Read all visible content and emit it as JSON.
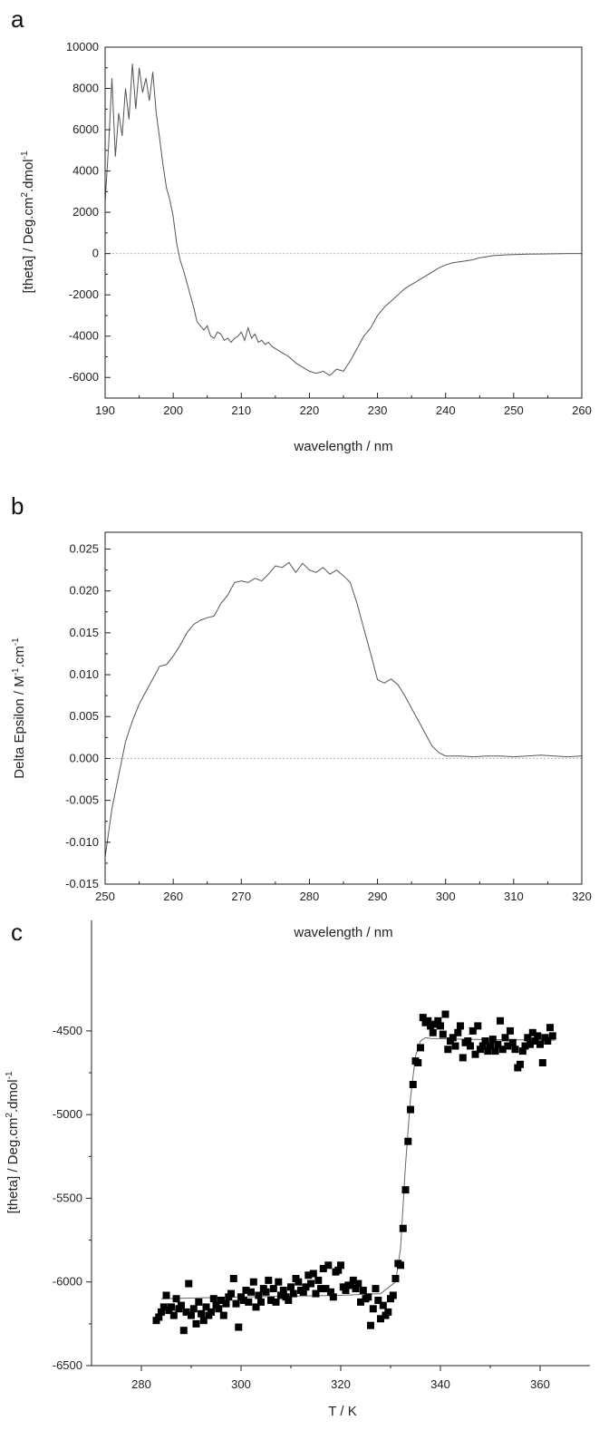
{
  "chart_data": [
    {
      "id": "a",
      "panel_label": "a",
      "type": "line",
      "title": "",
      "xlabel": "wavelength / nm",
      "ylabel": "[theta] / Deg.cm",
      "ylabel_sup1": "2",
      "ylabel_mid": ".dmol",
      "ylabel_sup2": "-1",
      "xlim": [
        190,
        260
      ],
      "ylim": [
        -7000,
        10000
      ],
      "xticks": [
        190,
        200,
        210,
        220,
        230,
        240,
        250,
        260
      ],
      "yticks": [
        -6000,
        -4000,
        -2000,
        0,
        2000,
        4000,
        6000,
        8000,
        10000
      ],
      "reference_line_y": 0,
      "x": [
        190,
        190.5,
        191,
        191.5,
        192,
        192.5,
        193,
        193.5,
        194,
        194.5,
        195,
        195.5,
        196,
        196.5,
        197,
        197.5,
        198,
        198.5,
        199,
        199.5,
        200,
        200.5,
        201,
        201.5,
        202,
        202.5,
        203,
        203.5,
        204,
        204.5,
        205,
        205.5,
        206,
        206.5,
        207,
        207.5,
        208,
        208.5,
        209,
        209.5,
        210,
        210.5,
        211,
        211.5,
        212,
        212.5,
        213,
        213.5,
        214,
        214.5,
        215,
        216,
        217,
        218,
        219,
        220,
        221,
        222,
        223,
        224,
        225,
        226,
        227,
        228,
        229,
        230,
        231,
        232,
        233,
        234,
        235,
        236,
        237,
        238,
        239,
        240,
        241,
        242,
        243,
        244,
        245,
        246,
        247,
        248,
        249,
        250,
        252,
        254,
        256,
        258,
        260
      ],
      "values": [
        2500,
        5200,
        8500,
        4700,
        6800,
        5700,
        8000,
        6500,
        9200,
        7000,
        9000,
        7800,
        8500,
        7400,
        8800,
        6800,
        5600,
        4300,
        3200,
        2600,
        1800,
        500,
        -300,
        -800,
        -1400,
        -2000,
        -2600,
        -3300,
        -3500,
        -3700,
        -3500,
        -4000,
        -4100,
        -3800,
        -3900,
        -4200,
        -4100,
        -4300,
        -4100,
        -4000,
        -3800,
        -4200,
        -3600,
        -4100,
        -3900,
        -4300,
        -4200,
        -4400,
        -4300,
        -4500,
        -4600,
        -4800,
        -5000,
        -5300,
        -5500,
        -5700,
        -5800,
        -5700,
        -5900,
        -5600,
        -5700,
        -5200,
        -4600,
        -4000,
        -3600,
        -3000,
        -2600,
        -2300,
        -2000,
        -1700,
        -1500,
        -1300,
        -1100,
        -900,
        -700,
        -550,
        -450,
        -400,
        -350,
        -300,
        -200,
        -150,
        -100,
        -80,
        -60,
        -50,
        -30,
        -20,
        -10,
        0,
        0
      ]
    },
    {
      "id": "b",
      "panel_label": "b",
      "type": "line",
      "title": "",
      "xlabel": "wavelength / nm",
      "ylabel": "Delta Epsilon / M",
      "ylabel_sup1": "-1",
      "ylabel_mid": ".cm",
      "ylabel_sup2": "-1",
      "xlim": [
        250,
        320
      ],
      "ylim": [
        -0.015,
        0.027
      ],
      "xticks": [
        250,
        260,
        270,
        280,
        290,
        300,
        310,
        320
      ],
      "yticks": [
        -0.015,
        -0.01,
        -0.005,
        0,
        0.005,
        0.01,
        0.015,
        0.02,
        0.025
      ],
      "ytick_labels": [
        "-0.015",
        "-0.010",
        "-0.005",
        "0.000",
        "0.005",
        "0.010",
        "0.015",
        "0.020",
        "0.025"
      ],
      "reference_line_y": 0,
      "x": [
        250,
        251,
        252,
        253,
        254,
        255,
        256,
        257,
        258,
        259,
        260,
        261,
        262,
        263,
        264,
        265,
        266,
        267,
        268,
        269,
        270,
        271,
        272,
        273,
        274,
        275,
        276,
        277,
        278,
        279,
        280,
        281,
        282,
        283,
        284,
        285,
        286,
        287,
        288,
        289,
        290,
        291,
        292,
        293,
        294,
        295,
        296,
        297,
        298,
        299,
        300,
        302,
        304,
        306,
        308,
        310,
        312,
        314,
        316,
        318,
        320
      ],
      "values": [
        -0.0118,
        -0.006,
        -0.002,
        0.002,
        0.0045,
        0.0065,
        0.008,
        0.0095,
        0.011,
        0.0112,
        0.0122,
        0.0135,
        0.015,
        0.016,
        0.0165,
        0.0168,
        0.017,
        0.0185,
        0.0195,
        0.021,
        0.0212,
        0.021,
        0.0215,
        0.0212,
        0.022,
        0.023,
        0.0228,
        0.0234,
        0.0222,
        0.0233,
        0.0225,
        0.0222,
        0.0228,
        0.022,
        0.0225,
        0.0218,
        0.021,
        0.0185,
        0.0155,
        0.0125,
        0.0094,
        0.009,
        0.0095,
        0.0088,
        0.0075,
        0.006,
        0.0045,
        0.003,
        0.0015,
        0.0007,
        0.0003,
        0.0003,
        0.0002,
        0.0003,
        0.0003,
        0.0002,
        0.0003,
        0.0004,
        0.0003,
        0.0002,
        0.0003
      ]
    },
    {
      "id": "c",
      "panel_label": "c",
      "type": "scatter",
      "title": "",
      "xlabel": "T / K",
      "ylabel": "[theta] / Deg.cm",
      "ylabel_sup1": "2",
      "ylabel_mid": ".dmol",
      "ylabel_sup2": "-1",
      "xlim": [
        270,
        370
      ],
      "ylim": [
        -6500,
        -4300
      ],
      "xticks": [
        280,
        300,
        320,
        340,
        360
      ],
      "yticks": [
        -6500,
        -6000,
        -5500,
        -5000,
        -4500
      ],
      "fit_line": {
        "x": [
          284,
          300,
          320,
          328,
          331,
          332,
          333,
          334,
          335,
          336,
          337,
          338,
          345,
          363
        ],
        "values": [
          -6100,
          -6090,
          -6080,
          -6070,
          -6000,
          -5800,
          -5300,
          -4900,
          -4650,
          -4560,
          -4540,
          -4545,
          -4550,
          -4555
        ]
      },
      "points": [
        [
          283,
          -6230
        ],
        [
          283.5,
          -6210
        ],
        [
          284,
          -6180
        ],
        [
          284.5,
          -6150
        ],
        [
          285,
          -6080
        ],
        [
          285.5,
          -6170
        ],
        [
          286,
          -6150
        ],
        [
          286.5,
          -6200
        ],
        [
          287,
          -6100
        ],
        [
          287.5,
          -6160
        ],
        [
          288,
          -6140
        ],
        [
          288.5,
          -6290
        ],
        [
          289,
          -6180
        ],
        [
          289.5,
          -6010
        ],
        [
          290,
          -6200
        ],
        [
          290.5,
          -6160
        ],
        [
          291,
          -6250
        ],
        [
          291.5,
          -6120
        ],
        [
          292,
          -6190
        ],
        [
          292.5,
          -6230
        ],
        [
          293,
          -6150
        ],
        [
          293.5,
          -6200
        ],
        [
          294,
          -6180
        ],
        [
          294.5,
          -6100
        ],
        [
          295,
          -6140
        ],
        [
          295.5,
          -6160
        ],
        [
          296,
          -6110
        ],
        [
          296.5,
          -6200
        ],
        [
          297,
          -6130
        ],
        [
          297.5,
          -6090
        ],
        [
          298,
          -6070
        ],
        [
          298.5,
          -5980
        ],
        [
          299,
          -6130
        ],
        [
          299.5,
          -6270
        ],
        [
          300,
          -6090
        ],
        [
          300.5,
          -6110
        ],
        [
          301,
          -6050
        ],
        [
          301.5,
          -6120
        ],
        [
          302,
          -6060
        ],
        [
          302.5,
          -6000
        ],
        [
          303,
          -6150
        ],
        [
          303.5,
          -6080
        ],
        [
          304,
          -6120
        ],
        [
          304.5,
          -6040
        ],
        [
          305,
          -6060
        ],
        [
          305.5,
          -5990
        ],
        [
          306,
          -6110
        ],
        [
          306.5,
          -6040
        ],
        [
          307,
          -6120
        ],
        [
          307.5,
          -6000
        ],
        [
          308,
          -6080
        ],
        [
          308.5,
          -6050
        ],
        [
          309,
          -6090
        ],
        [
          309.5,
          -6110
        ],
        [
          310,
          -6030
        ],
        [
          310.5,
          -6070
        ],
        [
          311,
          -5980
        ],
        [
          311.5,
          -6000
        ],
        [
          312,
          -6050
        ],
        [
          312.5,
          -6060
        ],
        [
          313,
          -6030
        ],
        [
          313.5,
          -5960
        ],
        [
          314,
          -6010
        ],
        [
          314.5,
          -5950
        ],
        [
          315,
          -6070
        ],
        [
          315.5,
          -5990
        ],
        [
          316,
          -6040
        ],
        [
          316.5,
          -5920
        ],
        [
          317,
          -6040
        ],
        [
          317.5,
          -5900
        ],
        [
          318,
          -6060
        ],
        [
          318.5,
          -6090
        ],
        [
          319,
          -5940
        ],
        [
          319.5,
          -5930
        ],
        [
          320,
          -5900
        ],
        [
          320.5,
          -6030
        ],
        [
          321,
          -6050
        ],
        [
          321.5,
          -6020
        ],
        [
          322,
          -6020
        ],
        [
          322.5,
          -5990
        ],
        [
          323,
          -6040
        ],
        [
          323.5,
          -6010
        ],
        [
          324,
          -6120
        ],
        [
          324.5,
          -6050
        ],
        [
          325,
          -6100
        ],
        [
          325.5,
          -6090
        ],
        [
          326,
          -6260
        ],
        [
          326.5,
          -6160
        ],
        [
          327,
          -6040
        ],
        [
          327.5,
          -6110
        ],
        [
          328,
          -6220
        ],
        [
          328.5,
          -6140
        ],
        [
          329,
          -6200
        ],
        [
          329.5,
          -6180
        ],
        [
          330,
          -6100
        ],
        [
          330.5,
          -6080
        ],
        [
          331,
          -5980
        ],
        [
          331.5,
          -5890
        ],
        [
          332,
          -5900
        ],
        [
          332.5,
          -5680
        ],
        [
          333,
          -5450
        ],
        [
          333.5,
          -5160
        ],
        [
          334,
          -4970
        ],
        [
          334.5,
          -4820
        ],
        [
          335,
          -4680
        ],
        [
          335.5,
          -4690
        ],
        [
          336,
          -4600
        ],
        [
          336.5,
          -4420
        ],
        [
          337,
          -4450
        ],
        [
          337.5,
          -4440
        ],
        [
          338,
          -4470
        ],
        [
          338.5,
          -4510
        ],
        [
          339,
          -4460
        ],
        [
          339.5,
          -4440
        ],
        [
          340,
          -4470
        ],
        [
          340.5,
          -4520
        ],
        [
          341,
          -4400
        ],
        [
          341.5,
          -4610
        ],
        [
          342,
          -4560
        ],
        [
          342.5,
          -4540
        ],
        [
          343,
          -4590
        ],
        [
          343.5,
          -4510
        ],
        [
          344,
          -4470
        ],
        [
          344.5,
          -4660
        ],
        [
          345,
          -4570
        ],
        [
          345.5,
          -4560
        ],
        [
          346,
          -4590
        ],
        [
          346.5,
          -4500
        ],
        [
          347,
          -4640
        ],
        [
          347.5,
          -4470
        ],
        [
          348,
          -4610
        ],
        [
          348.5,
          -4590
        ],
        [
          349,
          -4560
        ],
        [
          349.5,
          -4620
        ],
        [
          350,
          -4590
        ],
        [
          350.5,
          -4550
        ],
        [
          351,
          -4620
        ],
        [
          351.5,
          -4580
        ],
        [
          352,
          -4440
        ],
        [
          352.5,
          -4610
        ],
        [
          353,
          -4540
        ],
        [
          353.5,
          -4590
        ],
        [
          354,
          -4500
        ],
        [
          354.5,
          -4570
        ],
        [
          355,
          -4610
        ],
        [
          355.5,
          -4720
        ],
        [
          356,
          -4700
        ],
        [
          356.5,
          -4620
        ],
        [
          357,
          -4590
        ],
        [
          357.5,
          -4540
        ],
        [
          358,
          -4580
        ],
        [
          358.5,
          -4510
        ],
        [
          359,
          -4560
        ],
        [
          359.5,
          -4530
        ],
        [
          360,
          -4580
        ],
        [
          360.5,
          -4690
        ],
        [
          361,
          -4540
        ],
        [
          361.5,
          -4560
        ],
        [
          362,
          -4480
        ],
        [
          362.5,
          -4530
        ]
      ]
    }
  ]
}
